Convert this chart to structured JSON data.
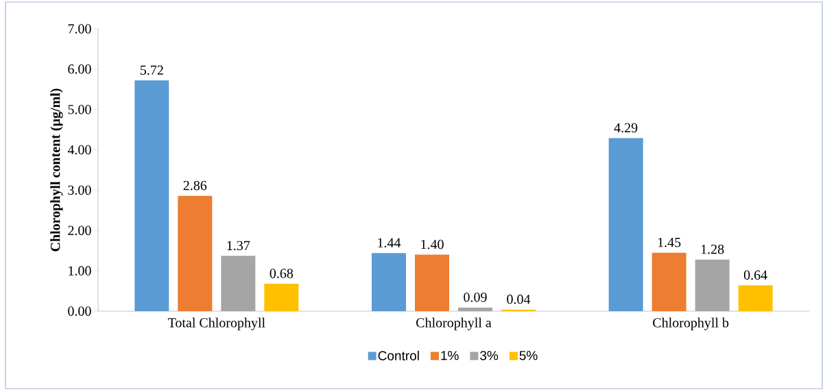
{
  "chart_data": {
    "type": "bar",
    "ylabel": "Chlorophyll content (µg/ml)",
    "categories": [
      "Total Chlorophyll",
      "Chlorophyll a",
      "Chlorophyll b"
    ],
    "series": [
      {
        "name": "Control",
        "color": "#5b9bd5",
        "values": [
          5.72,
          1.44,
          4.29
        ],
        "value_labels": [
          "5.72",
          "1.44",
          "4.29"
        ]
      },
      {
        "name": "1%",
        "color": "#ed7d31",
        "values": [
          2.86,
          1.4,
          1.45
        ],
        "value_labels": [
          "2.86",
          "1.40",
          "1.45"
        ]
      },
      {
        "name": "3%",
        "color": "#a5a5a5",
        "values": [
          1.37,
          0.09,
          1.28
        ],
        "value_labels": [
          "1.37",
          "0.09",
          "1.28"
        ]
      },
      {
        "name": "5%",
        "color": "#ffc000",
        "values": [
          0.68,
          0.04,
          0.64
        ],
        "value_labels": [
          "0.68",
          "0.04",
          "0.64"
        ]
      }
    ],
    "ylim": [
      0,
      7
    ],
    "yticks": [
      {
        "value": 0,
        "label": "0.00"
      },
      {
        "value": 1,
        "label": "1.00"
      },
      {
        "value": 2,
        "label": "2.00"
      },
      {
        "value": 3,
        "label": "3.00"
      },
      {
        "value": 4,
        "label": "4.00"
      },
      {
        "value": 5,
        "label": "5.00"
      },
      {
        "value": 6,
        "label": "6.00"
      },
      {
        "value": 7,
        "label": "7.00"
      }
    ],
    "grid": false,
    "legend": "bottom"
  }
}
